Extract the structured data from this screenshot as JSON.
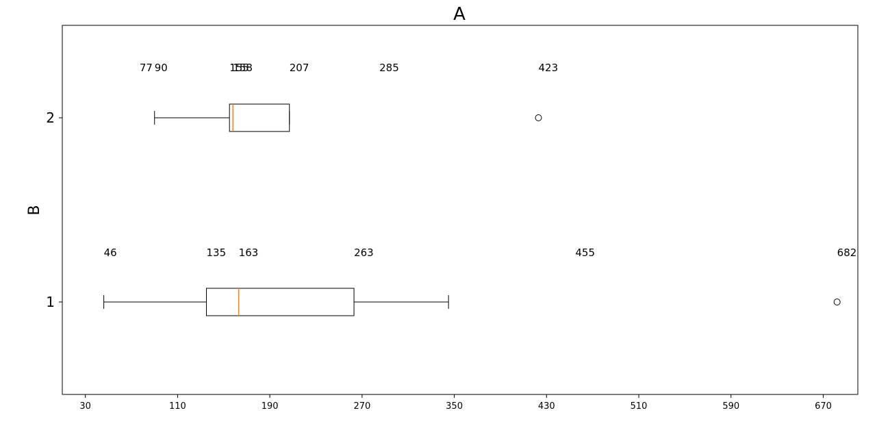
{
  "chart_data": {
    "type": "boxplot",
    "orientation": "horizontal",
    "title": "A",
    "xlabel": "",
    "ylabel": "B",
    "xlim": [
      10,
      700
    ],
    "x_ticks": [
      30,
      110,
      190,
      270,
      350,
      430,
      510,
      590,
      670
    ],
    "categories": [
      "1",
      "2"
    ],
    "grid": false,
    "colors": {
      "box": "#000000",
      "median": "#ff7f0e",
      "flier": "#000000"
    },
    "series": [
      {
        "name": "1",
        "whisker_low": 46,
        "q1": 135,
        "median": 163,
        "q3": 263,
        "whisker_high": 345,
        "outliers": [
          682
        ],
        "labels": [
          "46",
          "135",
          "163",
          "263",
          "455",
          "682"
        ],
        "label_values": [
          46,
          135,
          163,
          263,
          455,
          682
        ]
      },
      {
        "name": "2",
        "whisker_low": 90,
        "q1": 155,
        "median": 158,
        "q3": 207,
        "whisker_high": 207,
        "outliers": [
          423
        ],
        "labels": [
          "77",
          "90",
          "155",
          "158",
          "207",
          "285",
          "423"
        ],
        "label_values": [
          77,
          90,
          155,
          158,
          207,
          285,
          423
        ]
      }
    ]
  }
}
